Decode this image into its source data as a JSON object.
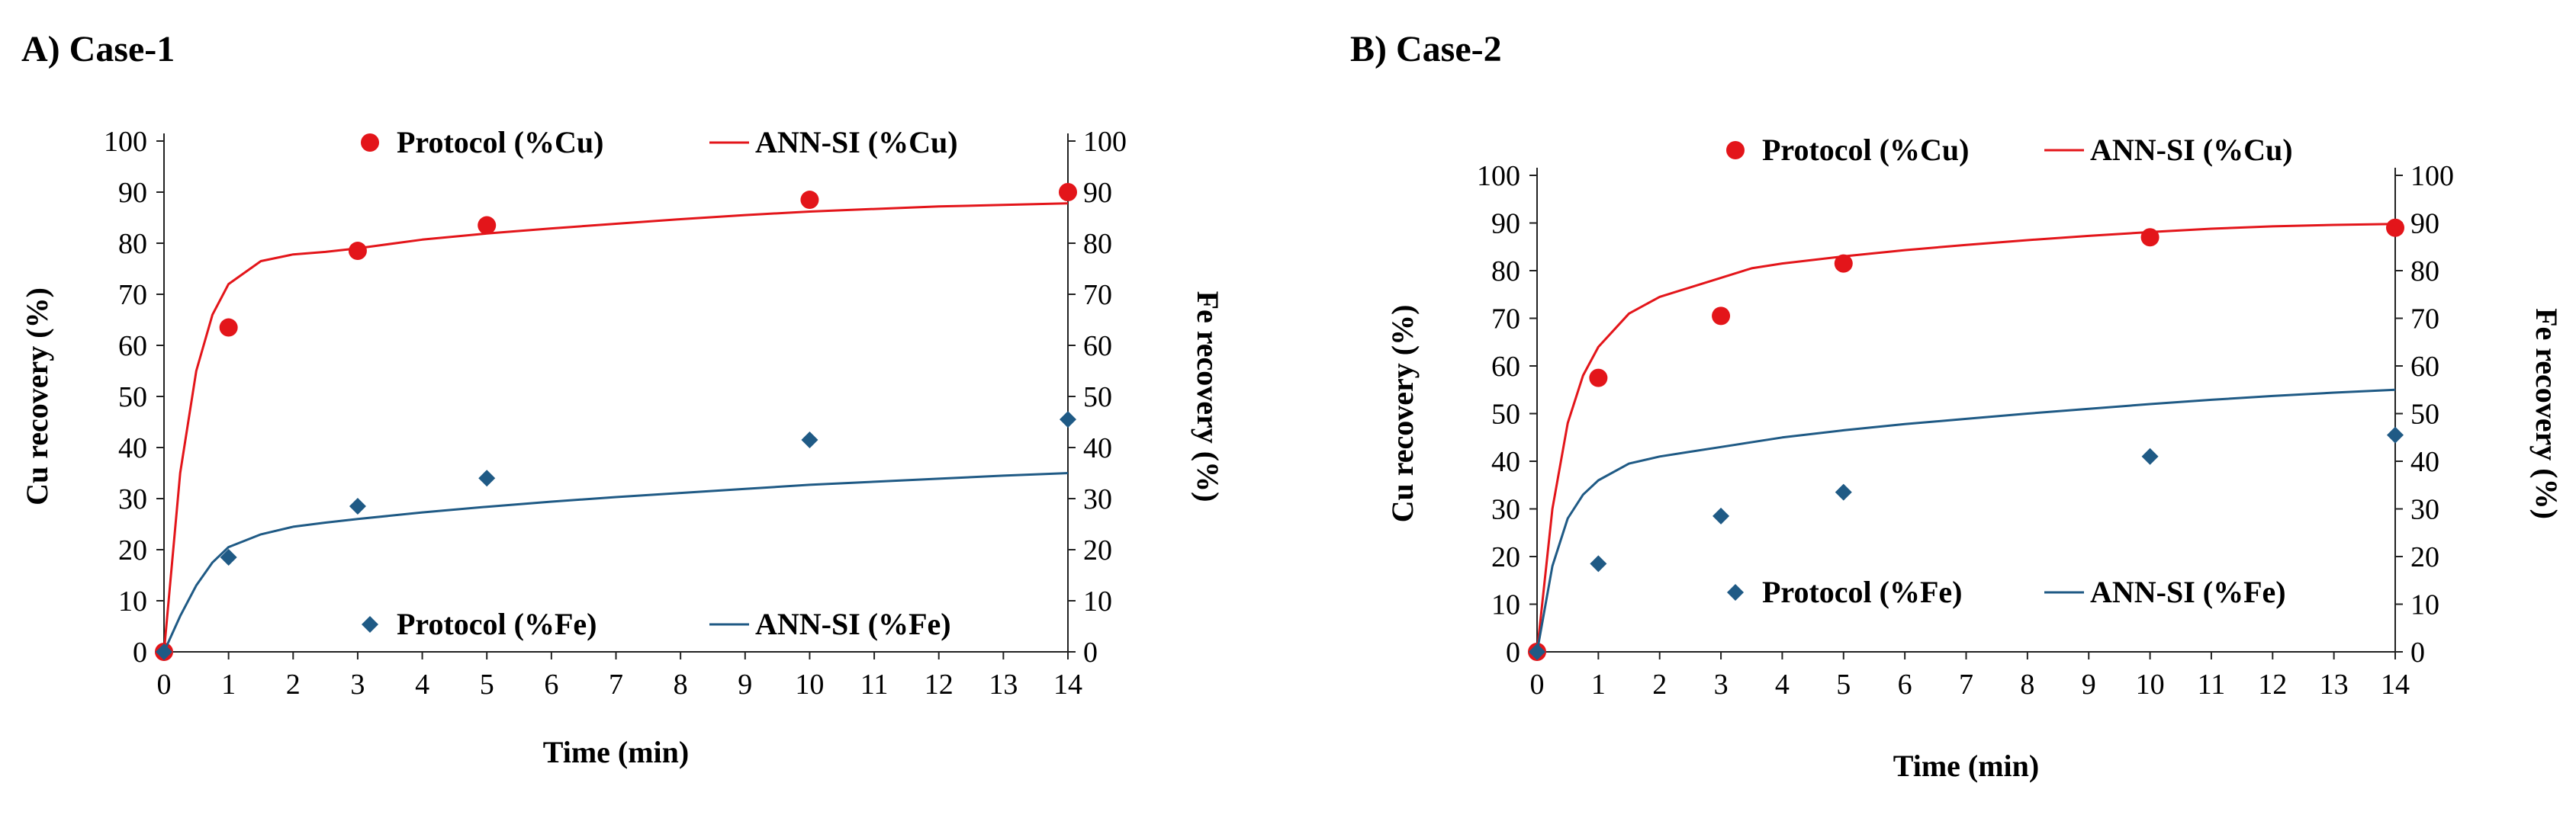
{
  "chart_data": [
    {
      "type": "line",
      "panel_title": "A) Case-1",
      "xlabel": "Time (min)",
      "ylabel_left": "Cu recovery (%)",
      "ylabel_right": "Fe recovery (%)",
      "xlim": [
        0,
        14
      ],
      "ylim": [
        0,
        100
      ],
      "xticks": [
        0,
        1,
        2,
        3,
        4,
        5,
        6,
        7,
        8,
        9,
        10,
        11,
        12,
        13,
        14
      ],
      "yticks": [
        0,
        10,
        20,
        30,
        40,
        50,
        60,
        70,
        80,
        90,
        100
      ],
      "colors": {
        "cu": "#e3151a",
        "fe": "#1f5a85"
      },
      "legend": {
        "protocol_cu": "Protocol (%Cu)",
        "ann_cu": "ANN-SI (%Cu)",
        "protocol_fe": "Protocol (%Fe)",
        "ann_fe": "ANN-SI (%Fe)"
      },
      "series": [
        {
          "name": "Protocol (%Cu)",
          "kind": "scatter",
          "marker": "circle",
          "x": [
            0,
            1,
            3,
            5,
            10,
            14
          ],
          "y": [
            0,
            63.5,
            78.5,
            83.5,
            88.5,
            90
          ]
        },
        {
          "name": "ANN-SI (%Cu)",
          "kind": "line",
          "x": [
            0,
            0.25,
            0.5,
            0.75,
            1,
            1.5,
            2,
            2.5,
            3,
            4,
            5,
            6,
            7,
            8,
            9,
            10,
            11,
            12,
            13,
            14
          ],
          "y": [
            0,
            35,
            55,
            66,
            72,
            76.5,
            77.8,
            78.3,
            79,
            80.7,
            81.9,
            82.9,
            83.8,
            84.7,
            85.5,
            86.2,
            86.7,
            87.2,
            87.5,
            87.8
          ]
        },
        {
          "name": "Protocol (%Fe)",
          "kind": "scatter",
          "marker": "diamond",
          "x": [
            0,
            1,
            3,
            5,
            10,
            14
          ],
          "y": [
            0,
            18.5,
            28.5,
            34,
            41.5,
            45.5
          ]
        },
        {
          "name": "ANN-SI (%Fe)",
          "kind": "line",
          "x": [
            0,
            0.25,
            0.5,
            0.75,
            1,
            1.5,
            2,
            2.5,
            3,
            4,
            5,
            6,
            7,
            8,
            9,
            10,
            11,
            12,
            13,
            14
          ],
          "y": [
            0,
            7,
            13,
            17.5,
            20.5,
            23,
            24.5,
            25.3,
            26,
            27.3,
            28.4,
            29.4,
            30.3,
            31.1,
            31.9,
            32.7,
            33.3,
            33.9,
            34.5,
            35
          ]
        }
      ]
    },
    {
      "type": "line",
      "panel_title": "B) Case-2",
      "xlabel": "Time (min)",
      "ylabel_left": "Cu recovery (%)",
      "ylabel_right": "Fe recovery (%)",
      "xlim": [
        0,
        14
      ],
      "ylim": [
        0,
        100
      ],
      "xticks": [
        0,
        1,
        2,
        3,
        4,
        5,
        6,
        7,
        8,
        9,
        10,
        11,
        12,
        13,
        14
      ],
      "yticks": [
        0,
        10,
        20,
        30,
        40,
        50,
        60,
        70,
        80,
        90,
        100
      ],
      "colors": {
        "cu": "#e3151a",
        "fe": "#1f5a85"
      },
      "legend": {
        "protocol_cu": "Protocol (%Cu)",
        "ann_cu": "ANN-SI (%Cu)",
        "protocol_fe": "Protocol (%Fe)",
        "ann_fe": "ANN-SI (%Fe)"
      },
      "series": [
        {
          "name": "Protocol (%Cu)",
          "kind": "scatter",
          "marker": "circle",
          "x": [
            0,
            1,
            3,
            5,
            10,
            14
          ],
          "y": [
            0,
            57.5,
            70.5,
            81.5,
            87,
            89
          ]
        },
        {
          "name": "ANN-SI (%Cu)",
          "kind": "line",
          "x": [
            0,
            0.25,
            0.5,
            0.75,
            1,
            1.5,
            2,
            2.5,
            3,
            3.5,
            4,
            5,
            6,
            7,
            8,
            9,
            10,
            11,
            12,
            13,
            14
          ],
          "y": [
            0,
            30,
            48,
            58,
            64,
            71,
            74.5,
            76.5,
            78.5,
            80.5,
            81.5,
            83,
            84.3,
            85.4,
            86.4,
            87.3,
            88.1,
            88.8,
            89.3,
            89.6,
            89.8
          ]
        },
        {
          "name": "Protocol (%Fe)",
          "kind": "scatter",
          "marker": "diamond",
          "x": [
            0,
            1,
            3,
            5,
            10,
            14
          ],
          "y": [
            0,
            18.5,
            28.5,
            33.5,
            41,
            45.5
          ]
        },
        {
          "name": "ANN-SI (%Fe)",
          "kind": "line",
          "x": [
            0,
            0.25,
            0.5,
            0.75,
            1,
            1.5,
            2,
            2.5,
            3,
            4,
            5,
            6,
            7,
            8,
            9,
            10,
            11,
            12,
            13,
            14
          ],
          "y": [
            0,
            18,
            28,
            33,
            36,
            39.5,
            41,
            42,
            43,
            45,
            46.5,
            47.8,
            48.9,
            50,
            51,
            52,
            52.9,
            53.7,
            54.4,
            55
          ]
        }
      ]
    }
  ]
}
